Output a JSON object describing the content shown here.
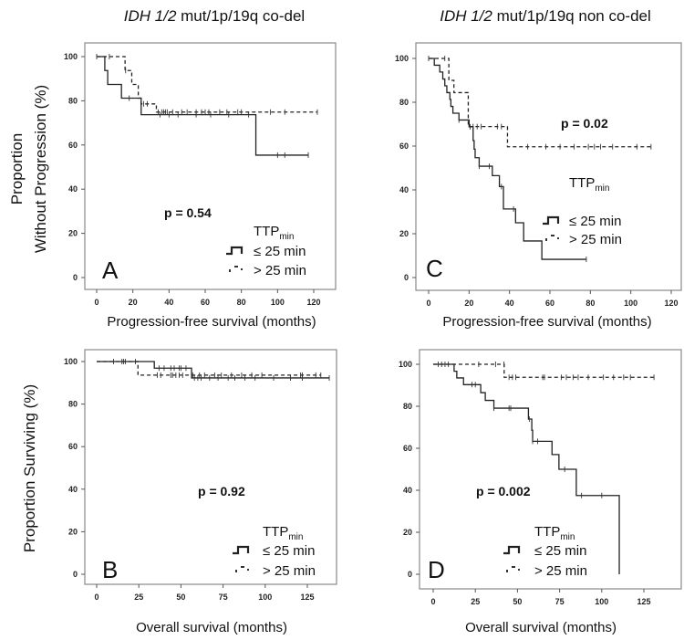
{
  "chart_data": {
    "headers": {
      "left_italic": "IDH 1/2",
      "left_rest": " mut/1p/19q co-del",
      "right_italic": "IDH 1/2",
      "right_rest": " mut/1p/19q non co-del"
    },
    "ylabels": {
      "pfs_line1": "Proportion",
      "pfs_line2": "Without Progression (%)",
      "os": "Proportion Surviving (%)"
    },
    "legend": {
      "title": "TTP",
      "title_sub": "min",
      "items": [
        "≤ 25 min",
        "> 25 min"
      ]
    },
    "panels": [
      {
        "id": "A",
        "type": "line",
        "subtype": "kaplan-meier",
        "xlabel": "Progression-free survival (months)",
        "p_value": "p = 0.54",
        "xlim": [
          -6.5,
          132
        ],
        "ylim": [
          -5,
          106
        ],
        "xticks": [
          0,
          20,
          40,
          60,
          80,
          100,
          120
        ],
        "yticks": [
          0,
          20,
          40,
          60,
          80,
          100
        ],
        "series": [
          {
            "name": "≤ 25 min",
            "style": "solid",
            "steps": [
              [
                0,
                100
              ],
              [
                4.5,
                93.7
              ],
              [
                6.1,
                87.4
              ],
              [
                13.7,
                81.2
              ],
              [
                24.6,
                73.7
              ],
              [
                88,
                55.4
              ]
            ],
            "end": 117,
            "censored": [
              18,
              35,
              40,
              45,
              55,
              63,
              73,
              84,
              100,
              104,
              117
            ]
          },
          {
            "name": "> 25 min",
            "style": "dashed",
            "steps": [
              [
                0,
                100
              ],
              [
                15.7,
                93.7
              ],
              [
                19.4,
                87.4
              ],
              [
                23,
                81.2
              ],
              [
                24.6,
                78.6
              ],
              [
                33,
                74.9
              ]
            ],
            "end": 122,
            "censored": [
              0,
              7,
              16,
              26,
              28,
              34,
              36,
              37,
              38,
              39,
              42,
              47,
              50,
              55,
              58,
              60,
              62,
              68,
              72,
              78,
              80,
              96,
              104,
              122
            ]
          }
        ]
      },
      {
        "id": "C",
        "type": "line",
        "subtype": "kaplan-meier",
        "xlabel": "Progression-free survival (months)",
        "p_value": "p = 0.02",
        "xlim": [
          -5,
          126
        ],
        "ylim": [
          -6,
          106
        ],
        "xticks": [
          0,
          20,
          40,
          60,
          80,
          100,
          120
        ],
        "yticks": [
          0,
          20,
          40,
          60,
          80,
          100
        ],
        "series": [
          {
            "name": "≤ 25 min",
            "style": "solid",
            "steps": [
              [
                0,
                100
              ],
              [
                2.8,
                96.9
              ],
              [
                5.5,
                93.8
              ],
              [
                7,
                90.6
              ],
              [
                8,
                87.5
              ],
              [
                9,
                84.4
              ],
              [
                10.5,
                81.3
              ],
              [
                11,
                78.1
              ],
              [
                12,
                75
              ],
              [
                15,
                71.9
              ],
              [
                20,
                68.8
              ],
              [
                22,
                62.5
              ],
              [
                22.5,
                58.6
              ],
              [
                23,
                54.7
              ],
              [
                25,
                50.8
              ],
              [
                31.5,
                46.5
              ],
              [
                35,
                41.5
              ],
              [
                37,
                31.3
              ],
              [
                43,
                25
              ],
              [
                47,
                16.7
              ],
              [
                56,
                8.3
              ]
            ],
            "end": 78,
            "censored": [
              0,
              15,
              20.5,
              25,
              30,
              36,
              42,
              78
            ]
          },
          {
            "name": "> 25 min",
            "style": "dashed",
            "steps": [
              [
                0,
                100
              ],
              [
                10,
                90
              ],
              [
                12.5,
                84.4
              ],
              [
                19.6,
                68.9
              ],
              [
                39,
                59.7
              ]
            ],
            "end": 110,
            "censored": [
              8,
              22,
              24,
              26,
              34,
              36,
              49,
              58,
              65,
              72,
              79,
              82,
              85,
              91,
              103,
              110
            ]
          }
        ]
      },
      {
        "id": "B",
        "type": "line",
        "subtype": "kaplan-meier",
        "xlabel": "Overall survival (months)",
        "p_value": "p = 0.92",
        "xlim": [
          -7,
          146
        ],
        "ylim": [
          -5,
          106
        ],
        "xticks": [
          0,
          25,
          50,
          75,
          100,
          125
        ],
        "yticks": [
          0,
          20,
          40,
          60,
          80,
          100
        ],
        "series": [
          {
            "name": "≤ 25 min",
            "style": "solid",
            "steps": [
              [
                0,
                100
              ],
              [
                34.2,
                96.9
              ],
              [
                56.3,
                92.3
              ]
            ],
            "end": 138,
            "censored": [
              15,
              17,
              23,
              37,
              40,
              44,
              46,
              49,
              50,
              53,
              58,
              60,
              62,
              67,
              72,
              78,
              82,
              88,
              94,
              105,
              115,
              122,
              138
            ]
          },
          {
            "name": "> 25 min",
            "style": "dashed",
            "steps": [
              [
                0,
                100
              ],
              [
                24.5,
                93.6
              ]
            ],
            "end": 133,
            "censored": [
              10,
              16,
              36,
              38,
              44,
              45,
              47,
              49,
              51,
              57,
              61,
              64,
              70,
              74,
              80,
              86,
              92,
              98,
              121,
              122,
              130,
              133
            ]
          }
        ]
      },
      {
        "id": "D",
        "type": "line",
        "subtype": "kaplan-meier",
        "xlabel": "Overall survival (months)",
        "p_value": "p = 0.002",
        "xlim": [
          -8,
          147
        ],
        "ylim": [
          -7,
          106
        ],
        "xticks": [
          0,
          25,
          50,
          75,
          100,
          125
        ],
        "yticks": [
          0,
          20,
          40,
          60,
          80,
          100
        ],
        "series": [
          {
            "name": "≤ 25 min",
            "style": "solid",
            "steps": [
              [
                0,
                100
              ],
              [
                12.4,
                96.7
              ],
              [
                14,
                93.5
              ],
              [
                18,
                90.3
              ],
              [
                28.2,
                86.5
              ],
              [
                30.9,
                82.8
              ],
              [
                36,
                79.1
              ],
              [
                56.5,
                73.9
              ],
              [
                58.5,
                68.6
              ],
              [
                59,
                63.3
              ],
              [
                70.5,
                57
              ],
              [
                74.6,
                50
              ],
              [
                84.9,
                37.5
              ],
              [
                110.4,
                0
              ]
            ],
            "end": 110.4,
            "censored": [
              23,
              25,
              36,
              45,
              46,
              57,
              59,
              62,
              78,
              88,
              100
            ]
          },
          {
            "name": "> 25 min",
            "style": "dashed",
            "steps": [
              [
                0,
                100
              ],
              [
                42.1,
                93.8
              ]
            ],
            "end": 131,
            "censored": [
              3,
              5,
              7,
              9,
              27,
              37,
              42,
              45,
              47,
              49,
              65,
              66,
              76,
              79,
              83,
              86,
              92,
              101,
              107,
              113,
              117,
              131
            ]
          }
        ]
      }
    ]
  }
}
